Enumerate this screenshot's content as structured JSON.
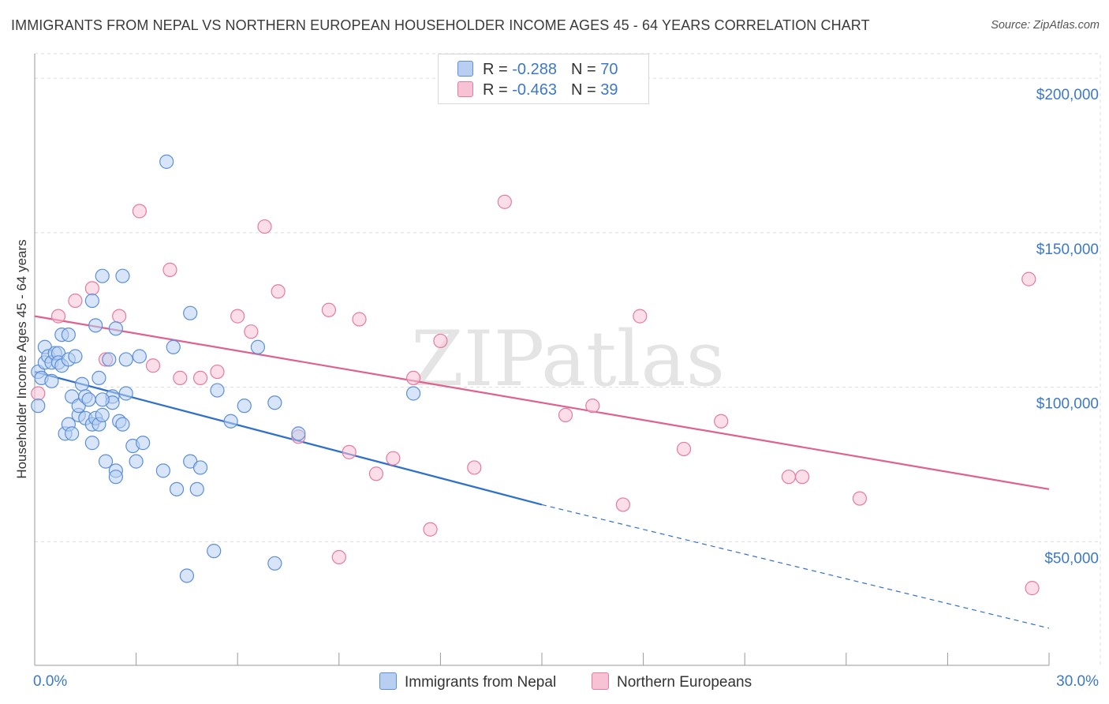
{
  "title": "IMMIGRANTS FROM NEPAL VS NORTHERN EUROPEAN HOUSEHOLDER INCOME AGES 45 - 64 YEARS CORRELATION CHART",
  "source": "Source: ZipAtlas.com",
  "watermark": "ZIPatlas",
  "colors": {
    "blue": "#5b8fd8",
    "blue_fill": "#b8cff2",
    "blue_line": "#2f6fce",
    "pink": "#e47ba0",
    "pink_fill": "#f7c3d4",
    "pink_line": "#e0608e",
    "grid": "#dcdcdc",
    "tick_text": "#3d78c9"
  },
  "legend": {
    "rows": [
      {
        "r_label": "R = ",
        "r_value": "-0.288",
        "n_label": "N = ",
        "n_value": "70"
      },
      {
        "r_label": "R = ",
        "r_value": "-0.463",
        "n_label": "N = ",
        "n_value": "39"
      }
    ]
  },
  "chart_data": {
    "type": "scatter",
    "title": "IMMIGRANTS FROM NEPAL VS NORTHERN EUROPEAN HOUSEHOLDER INCOME AGES 45 - 64 YEARS CORRELATION CHART",
    "xlabel": "",
    "ylabel": "Householder Income Ages 45 - 64 years",
    "xlim": [
      0,
      30
    ],
    "ylim": [
      10000,
      210000
    ],
    "x_tick_labels": [
      "0.0%",
      "30.0%"
    ],
    "y_ticks": [
      50000,
      100000,
      150000,
      200000
    ],
    "y_tick_labels": [
      "$50,000",
      "$100,000",
      "$150,000",
      "$200,000"
    ],
    "grid": true,
    "legend_position": "top-center",
    "series": [
      {
        "name": "Immigrants from Nepal",
        "r": -0.288,
        "n": 70,
        "trend": {
          "x0": 0,
          "y0": 105000,
          "x1": 15,
          "y1": 62000,
          "dashed_to_x": 30,
          "dashed_to_y": 22000
        },
        "points": [
          [
            0.1,
            94000
          ],
          [
            0.1,
            105000
          ],
          [
            0.2,
            103000
          ],
          [
            0.3,
            108000
          ],
          [
            0.3,
            113000
          ],
          [
            0.4,
            110000
          ],
          [
            0.5,
            102000
          ],
          [
            0.5,
            108000
          ],
          [
            0.6,
            111000
          ],
          [
            0.7,
            111000
          ],
          [
            0.7,
            108000
          ],
          [
            0.8,
            107000
          ],
          [
            0.8,
            117000
          ],
          [
            0.9,
            85000
          ],
          [
            1.0,
            109000
          ],
          [
            1.0,
            117000
          ],
          [
            1.0,
            88000
          ],
          [
            1.1,
            97000
          ],
          [
            1.1,
            85000
          ],
          [
            1.2,
            110000
          ],
          [
            1.3,
            91000
          ],
          [
            1.3,
            94000
          ],
          [
            1.4,
            101000
          ],
          [
            1.5,
            97000
          ],
          [
            1.5,
            90000
          ],
          [
            1.6,
            96000
          ],
          [
            1.7,
            88000
          ],
          [
            1.7,
            82000
          ],
          [
            1.7,
            128000
          ],
          [
            1.8,
            120000
          ],
          [
            1.8,
            90000
          ],
          [
            1.9,
            103000
          ],
          [
            1.9,
            88000
          ],
          [
            2.0,
            91000
          ],
          [
            2.0,
            136000
          ],
          [
            2.1,
            76000
          ],
          [
            2.2,
            109000
          ],
          [
            2.3,
            97000
          ],
          [
            2.3,
            95000
          ],
          [
            2.4,
            73000
          ],
          [
            2.4,
            119000
          ],
          [
            2.4,
            71000
          ],
          [
            2.5,
            89000
          ],
          [
            2.6,
            136000
          ],
          [
            2.6,
            88000
          ],
          [
            2.7,
            109000
          ],
          [
            2.7,
            98000
          ],
          [
            2.9,
            81000
          ],
          [
            3.0,
            76000
          ],
          [
            3.1,
            110000
          ],
          [
            3.2,
            82000
          ],
          [
            3.8,
            73000
          ],
          [
            3.9,
            173000
          ],
          [
            4.1,
            113000
          ],
          [
            4.2,
            67000
          ],
          [
            4.6,
            76000
          ],
          [
            4.6,
            124000
          ],
          [
            4.8,
            67000
          ],
          [
            4.9,
            74000
          ],
          [
            5.3,
            47000
          ],
          [
            5.4,
            99000
          ],
          [
            5.8,
            89000
          ],
          [
            6.2,
            94000
          ],
          [
            6.6,
            113000
          ],
          [
            7.1,
            95000
          ],
          [
            7.1,
            43000
          ],
          [
            7.8,
            85000
          ],
          [
            11.2,
            98000
          ],
          [
            4.5,
            39000
          ],
          [
            2.0,
            96000
          ]
        ]
      },
      {
        "name": "Northern Europeans",
        "r": -0.463,
        "n": 39,
        "trend": {
          "x0": 0,
          "y0": 123000,
          "x1": 30,
          "y1": 67000
        },
        "points": [
          [
            0.1,
            98000
          ],
          [
            0.7,
            123000
          ],
          [
            1.2,
            128000
          ],
          [
            1.7,
            132000
          ],
          [
            2.1,
            109000
          ],
          [
            2.5,
            123000
          ],
          [
            3.1,
            157000
          ],
          [
            3.5,
            107000
          ],
          [
            4.0,
            138000
          ],
          [
            4.3,
            103000
          ],
          [
            4.9,
            103000
          ],
          [
            5.4,
            105000
          ],
          [
            6.0,
            123000
          ],
          [
            6.4,
            118000
          ],
          [
            6.8,
            152000
          ],
          [
            7.2,
            131000
          ],
          [
            7.8,
            84000
          ],
          [
            8.7,
            125000
          ],
          [
            9.0,
            45000
          ],
          [
            9.3,
            79000
          ],
          [
            9.6,
            122000
          ],
          [
            10.1,
            72000
          ],
          [
            10.6,
            77000
          ],
          [
            11.2,
            103000
          ],
          [
            11.7,
            54000
          ],
          [
            12.0,
            115000
          ],
          [
            13.0,
            74000
          ],
          [
            13.9,
            160000
          ],
          [
            15.7,
            91000
          ],
          [
            16.5,
            94000
          ],
          [
            17.4,
            62000
          ],
          [
            17.9,
            123000
          ],
          [
            19.2,
            80000
          ],
          [
            20.3,
            89000
          ],
          [
            22.3,
            71000
          ],
          [
            22.7,
            71000
          ],
          [
            24.4,
            64000
          ],
          [
            29.4,
            135000
          ],
          [
            29.5,
            35000
          ]
        ]
      }
    ]
  }
}
